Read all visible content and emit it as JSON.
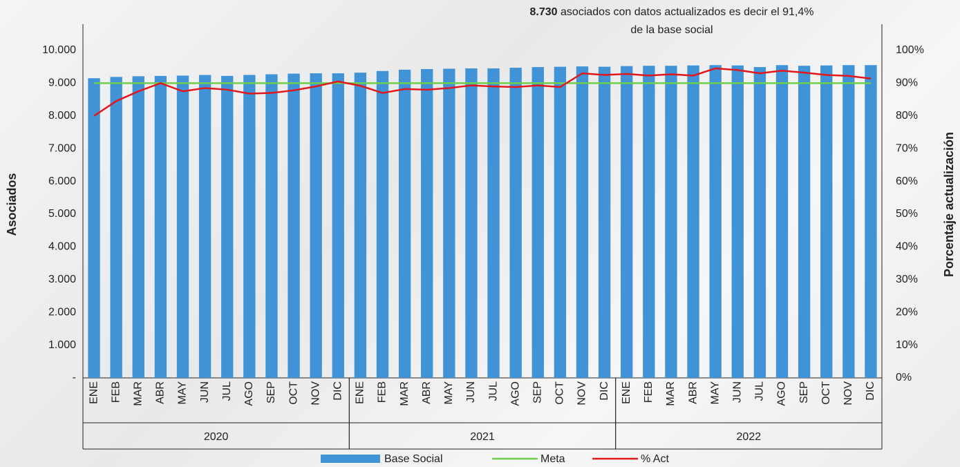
{
  "chart_data": {
    "type": "combo",
    "title_bold": "8.730",
    "title": "asociados con datos actualizados es decir el 91,4%",
    "title_line2": "de la base social",
    "y_label": "Asociados",
    "y2_label": "Porcentaje actualización",
    "categories": [
      "ENE",
      "FEB",
      "MAR",
      "ABR",
      "MAY",
      "JUN",
      "JUL",
      "AGO",
      "SEP",
      "OCT",
      "NOV",
      "DIC",
      "ENE",
      "FEB",
      "MAR",
      "ABR",
      "MAY",
      "JUN",
      "JUL",
      "AGO",
      "SEP",
      "OCT",
      "NOV",
      "DIC",
      "ENE",
      "FEB",
      "MAR",
      "ABR",
      "MAY",
      "JUN",
      "JUL",
      "AGO",
      "SEP",
      "OCT",
      "NOV",
      "DIC"
    ],
    "groups": [
      {
        "label": "2020",
        "span": 12
      },
      {
        "label": "2021",
        "span": 12
      },
      {
        "label": "2022",
        "span": 12
      }
    ],
    "ylim": [
      0,
      10800
    ],
    "yticks": [
      {
        "value": 0,
        "label": "-"
      },
      {
        "value": 1000,
        "label": "1.000"
      },
      {
        "value": 2000,
        "label": "2.000"
      },
      {
        "value": 3000,
        "label": "3.000"
      },
      {
        "value": 4000,
        "label": "4.000"
      },
      {
        "value": 5000,
        "label": "5.000"
      },
      {
        "value": 6000,
        "label": "6.000"
      },
      {
        "value": 7000,
        "label": "7.000"
      },
      {
        "value": 8000,
        "label": "8.000"
      },
      {
        "value": 9000,
        "label": "9.000"
      },
      {
        "value": 10000,
        "label": "10.000"
      }
    ],
    "y2lim": [
      0,
      108
    ],
    "y2ticks": [
      {
        "value": 0,
        "label": "0%"
      },
      {
        "value": 10,
        "label": "10%"
      },
      {
        "value": 20,
        "label": "20%"
      },
      {
        "value": 30,
        "label": "30%"
      },
      {
        "value": 40,
        "label": "40%"
      },
      {
        "value": 50,
        "label": "50%"
      },
      {
        "value": 60,
        "label": "60%"
      },
      {
        "value": 70,
        "label": "70%"
      },
      {
        "value": 80,
        "label": "80%"
      },
      {
        "value": 90,
        "label": "90%"
      },
      {
        "value": 100,
        "label": "100%"
      }
    ],
    "series": [
      {
        "name": "Base Social",
        "type": "bar",
        "color": "#3f93d6",
        "values": [
          9150,
          9190,
          9210,
          9220,
          9230,
          9250,
          9220,
          9250,
          9270,
          9290,
          9300,
          9300,
          9320,
          9370,
          9410,
          9430,
          9440,
          9450,
          9450,
          9470,
          9490,
          9500,
          9510,
          9500,
          9520,
          9530,
          9530,
          9540,
          9550,
          9540,
          9490,
          9550,
          9530,
          9540,
          9550,
          9550
        ]
      },
      {
        "name": "Meta",
        "type": "line",
        "axis": "y2",
        "color": "#6fcf4a",
        "values": [
          90,
          90,
          90,
          90,
          90,
          90,
          90,
          90,
          90,
          90,
          90,
          90,
          90,
          90,
          90,
          90,
          90,
          90,
          90,
          90,
          90,
          90,
          90,
          90,
          90,
          90,
          90,
          90,
          90,
          90,
          90,
          90,
          90,
          90,
          90,
          90
        ]
      },
      {
        "name": "% Act",
        "type": "line",
        "axis": "y2",
        "color": "#e3161c",
        "values": [
          80,
          84.5,
          87.5,
          90,
          87.5,
          88.5,
          88,
          86.8,
          87,
          87.8,
          89,
          90.5,
          89.2,
          87,
          88.2,
          88,
          88.5,
          89.3,
          89,
          88.8,
          89.3,
          88.8,
          93,
          92.5,
          92.8,
          92.3,
          92.7,
          92.3,
          94.5,
          94,
          93,
          93.8,
          93.2,
          92.5,
          92.2,
          91.4
        ]
      }
    ]
  }
}
